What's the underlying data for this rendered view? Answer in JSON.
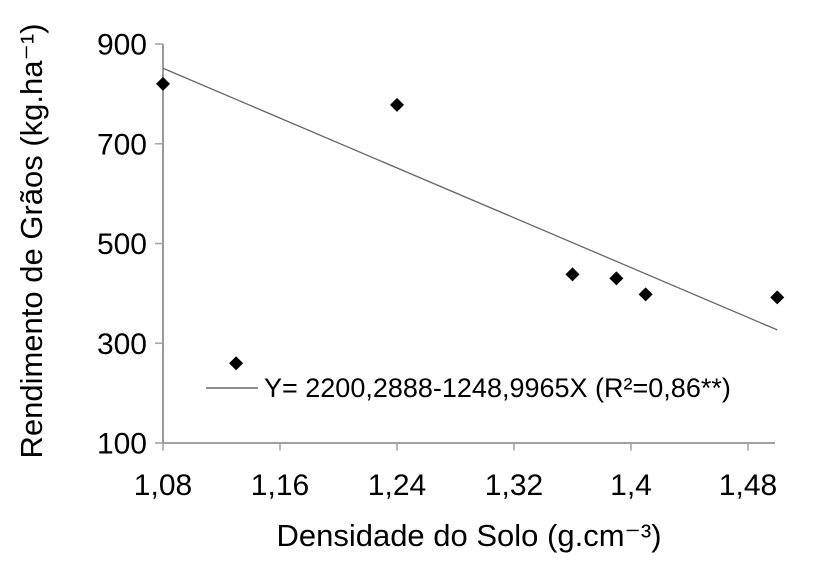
{
  "chart_data": {
    "type": "scatter",
    "title": "",
    "xlabel": "Densidade do Solo (g.cm⁻³)",
    "ylabel": "Rendimento de Grãos (kg.ha⁻¹)",
    "points": [
      [
        1.08,
        820
      ],
      [
        1.13,
        260
      ],
      [
        1.24,
        778
      ],
      [
        1.36,
        438
      ],
      [
        1.39,
        430
      ],
      [
        1.41,
        398
      ],
      [
        1.5,
        392
      ]
    ],
    "trendline": {
      "equation_label": "Y= 2200,2888-1248,9965X (R²=0,86**)",
      "intercept": 2200.2888,
      "slope": -1248.9965,
      "r_squared": 0.86,
      "significance": "**",
      "x_start": 1.08,
      "x_end": 1.5
    },
    "x_ticks": {
      "values": [
        1.08,
        1.16,
        1.24,
        1.32,
        1.4,
        1.48
      ],
      "labels": [
        "1,08",
        "1,16",
        "1,24",
        "1,32",
        "1,4",
        "1,48"
      ]
    },
    "y_ticks": {
      "values": [
        100,
        300,
        500,
        700,
        900
      ],
      "labels": [
        "100",
        "300",
        "500",
        "700",
        "900"
      ]
    },
    "xlim": [
      1.08,
      1.5
    ],
    "ylim": [
      100,
      900
    ],
    "grid": false,
    "legend_position": "inside-bottom-left",
    "marker": "diamond",
    "colors": {
      "marker": "#000000",
      "trend_line": "#666666",
      "axis_line": "#808080",
      "tick_mark": "#a9a5a0",
      "text": "#000000",
      "background": "#ffffff"
    }
  }
}
